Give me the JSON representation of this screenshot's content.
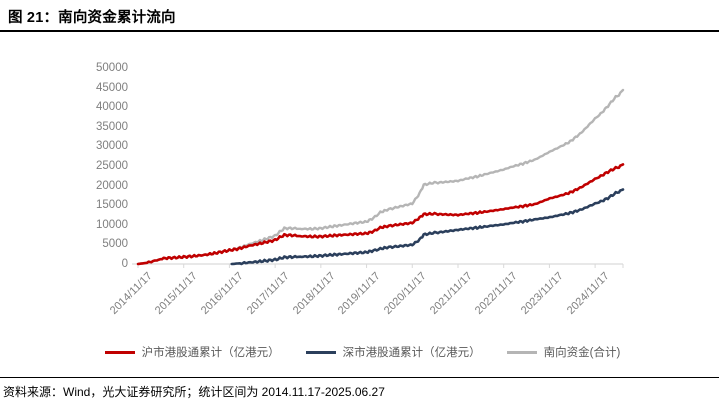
{
  "page": {
    "title": "图 21：南向资金累计流向",
    "source_note": "资料来源：Wind，光大证券研究所；统计区间为 2014.11.17-2025.06.27"
  },
  "chart_data": {
    "type": "line",
    "title": "南向资金累计流向",
    "xlabel": "",
    "ylabel": "",
    "unit": "亿港元",
    "ylim": [
      0,
      50000
    ],
    "ytick_step": 5000,
    "yticks": [
      0,
      5000,
      10000,
      15000,
      20000,
      25000,
      30000,
      35000,
      40000,
      45000,
      50000
    ],
    "xtick_labels": [
      "2014/11/17",
      "2015/11/17",
      "2016/11/17",
      "2017/11/17",
      "2018/11/17",
      "2019/11/17",
      "2020/11/17",
      "2021/11/17",
      "2022/11/17",
      "2023/11/17",
      "2024/11/17"
    ],
    "x_start": "2014/11/17",
    "x_end": "2025/06/27",
    "x_span_years": 10.61,
    "grid": false,
    "legend_position": "bottom",
    "axis_color": "#d9d9d9",
    "tick_label_color": "#7f7f7f",
    "series": [
      {
        "id": "hushi",
        "name": "沪市港股通累计（亿港元）",
        "color": "#c00000",
        "width": 2.6,
        "x": [
          0,
          0.2,
          0.45,
          0.6,
          0.8,
          1,
          1.2,
          1.45,
          1.7,
          2,
          2.2,
          2.45,
          2.7,
          3,
          3.1,
          3.2,
          3.4,
          3.55,
          3.8,
          4,
          4.2,
          4.45,
          4.7,
          5,
          5.15,
          5.3,
          5.45,
          5.6,
          5.8,
          6,
          6.16,
          6.25,
          6.45,
          6.6,
          6.8,
          7,
          7.2,
          7.45,
          7.7,
          8,
          8.2,
          8.45,
          8.7,
          9,
          9.2,
          9.45,
          9.7,
          10,
          10.12,
          10.28,
          10.45,
          10.52,
          10.61
        ],
        "values": [
          0,
          300,
          1100,
          1500,
          1600,
          1800,
          2000,
          2300,
          2800,
          3500,
          3900,
          4700,
          5300,
          6100,
          6800,
          7400,
          7300,
          7100,
          7000,
          7000,
          7200,
          7400,
          7600,
          7800,
          8300,
          9300,
          9600,
          9900,
          10200,
          10500,
          11800,
          12700,
          12800,
          12700,
          12600,
          12500,
          12800,
          13100,
          13500,
          14000,
          14400,
          14800,
          15300,
          16700,
          17300,
          18200,
          19600,
          21700,
          22400,
          23500,
          24500,
          24700,
          25400
        ]
      },
      {
        "id": "shenshi",
        "name": "深市港股通累计（亿港元）",
        "color": "#2b3f5c",
        "width": 2.6,
        "x": [
          2.05,
          2.2,
          2.45,
          2.7,
          3,
          3.1,
          3.2,
          3.4,
          3.55,
          3.8,
          4,
          4.2,
          4.45,
          4.7,
          5,
          5.15,
          5.3,
          5.45,
          5.6,
          5.8,
          6,
          6.16,
          6.25,
          6.45,
          6.6,
          6.8,
          7,
          7.2,
          7.45,
          7.7,
          8,
          8.2,
          8.45,
          8.7,
          9,
          9.2,
          9.45,
          9.7,
          10,
          10.12,
          10.28,
          10.45,
          10.52,
          10.61
        ],
        "values": [
          0,
          150,
          400,
          700,
          1100,
          1400,
          1700,
          1800,
          1850,
          1950,
          2100,
          2300,
          2500,
          2750,
          3000,
          3400,
          3900,
          4200,
          4400,
          4650,
          4900,
          6200,
          7500,
          7900,
          8100,
          8400,
          8700,
          9000,
          9300,
          9700,
          10100,
          10500,
          10900,
          11400,
          11900,
          12400,
          13000,
          13900,
          15400,
          15900,
          16800,
          18100,
          18400,
          19000
        ]
      },
      {
        "id": "nanxiang-total",
        "name": "南向资金(合计)",
        "color": "#b5b5b5",
        "width": 2.4,
        "x": [
          0,
          0.2,
          0.45,
          0.6,
          0.8,
          1,
          1.2,
          1.45,
          1.7,
          2,
          2.2,
          2.45,
          2.7,
          3,
          3.1,
          3.2,
          3.4,
          3.55,
          3.8,
          4,
          4.2,
          4.45,
          4.7,
          5,
          5.15,
          5.3,
          5.45,
          5.6,
          5.8,
          6,
          6.16,
          6.25,
          6.45,
          6.6,
          6.8,
          7,
          7.2,
          7.45,
          7.7,
          8,
          8.2,
          8.45,
          8.7,
          9,
          9.2,
          9.45,
          9.7,
          10,
          10.12,
          10.28,
          10.45,
          10.52,
          10.61
        ],
        "values": [
          0,
          300,
          1100,
          1500,
          1600,
          1800,
          2000,
          2300,
          2800,
          3500,
          4050,
          5100,
          6000,
          7200,
          8200,
          9100,
          9100,
          8950,
          8950,
          9100,
          9500,
          9900,
          10350,
          10800,
          11700,
          13200,
          13800,
          14300,
          14850,
          15400,
          18000,
          20200,
          20700,
          20800,
          21000,
          21200,
          21800,
          22400,
          23200,
          24100,
          24900,
          25700,
          26700,
          28600,
          29700,
          31200,
          33500,
          37100,
          38300,
          40300,
          42600,
          43100,
          44400
        ]
      }
    ]
  }
}
